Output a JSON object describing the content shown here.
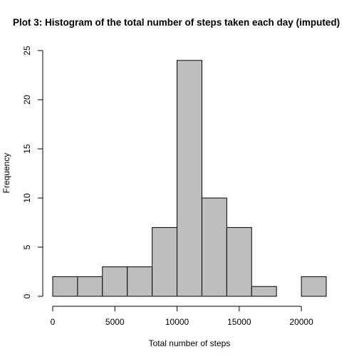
{
  "chart_data": {
    "type": "bar",
    "title": "Plot 3: Histogram of the total number of steps taken each day (imputed)",
    "xlabel": "Total number of steps",
    "ylabel": "Frequency",
    "bin_edges": [
      0,
      2000,
      4000,
      6000,
      8000,
      10000,
      12000,
      14000,
      16000,
      18000,
      20000,
      22000
    ],
    "values": [
      2,
      2,
      3,
      3,
      7,
      24,
      10,
      7,
      1,
      0,
      2
    ],
    "xlim": [
      0,
      22000
    ],
    "ylim": [
      0,
      25
    ],
    "x_ticks": [
      0,
      5000,
      10000,
      15000,
      20000
    ],
    "x_tick_labels": [
      "0",
      "5000",
      "10000",
      "15000",
      "20000"
    ],
    "y_ticks": [
      0,
      5,
      10,
      15,
      20,
      25
    ],
    "y_tick_labels": [
      "0",
      "5",
      "10",
      "15",
      "20",
      "25"
    ],
    "bar_color": "#bebebe",
    "grid": false,
    "legend": false
  }
}
